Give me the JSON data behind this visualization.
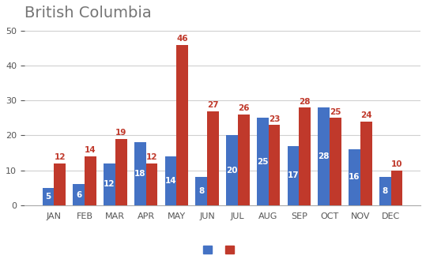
{
  "title": "British Columbia",
  "months": [
    "JAN",
    "FEB",
    "MAR",
    "APR",
    "MAY",
    "JUN",
    "JUL",
    "AUG",
    "SEP",
    "OCT",
    "NOV",
    "DEC"
  ],
  "blue_values": [
    5,
    6,
    12,
    18,
    14,
    8,
    20,
    25,
    17,
    28,
    16,
    8
  ],
  "red_values": [
    12,
    14,
    19,
    12,
    46,
    27,
    26,
    23,
    28,
    25,
    24,
    10
  ],
  "blue_color": "#4472C4",
  "red_color": "#C0392B",
  "title_color": "#757575",
  "blue_label_color": "#ffffff",
  "red_label_color": "#C0392B",
  "label_fontsize": 7.5,
  "title_fontsize": 14,
  "ylim": [
    0,
    52
  ],
  "yticks": [
    0,
    10,
    20,
    30,
    40,
    50
  ],
  "bar_width": 0.38,
  "background_color": "#ffffff",
  "grid_color": "#d0d0d0",
  "tick_color": "#555555",
  "tick_fontsize": 8
}
